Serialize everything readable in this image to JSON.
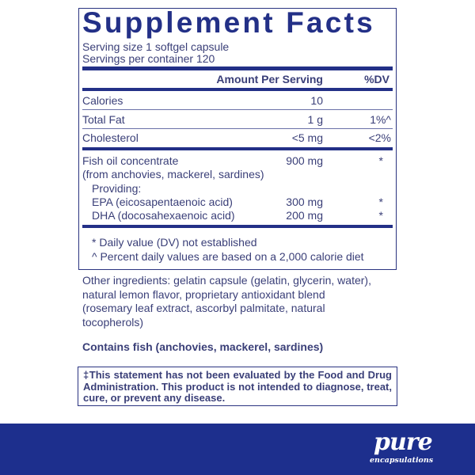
{
  "title": "Supplement Facts",
  "serving_size": "Serving size  1 softgel capsule",
  "servings_per_container": "Servings per container  120",
  "header": {
    "amount": "Amount Per Serving",
    "dv": "%DV"
  },
  "rows": [
    {
      "name": "Calories",
      "amount": "10",
      "dv": ""
    },
    {
      "name": "Total Fat",
      "amount": "1 g",
      "dv": "1%^"
    },
    {
      "name": "Cholesterol",
      "amount": "<5 mg",
      "dv": "<2%"
    },
    {
      "name": "Fish oil concentrate",
      "amount": "900 mg",
      "dv": "*"
    },
    {
      "name": "(from anchovies, mackerel, sardines)"
    },
    {
      "name": "Providing:"
    },
    {
      "name": "EPA (eicosapentaenoic acid)",
      "amount": "300 mg",
      "dv": "*"
    },
    {
      "name": "DHA (docosahexaenoic acid)",
      "amount": "200 mg",
      "dv": "*"
    }
  ],
  "footnotes": [
    "* Daily value (DV) not established",
    "^ Percent daily values are based on a 2,000 calorie diet"
  ],
  "other_ingredients": "Other ingredients: gelatin capsule (gelatin, glycerin, water), natural lemon flavor, proprietary antioxidant blend (rosemary leaf extract, ascorbyl palmitate, natural tocopherols)",
  "allergen": "Contains fish (anchovies, mackerel, sardines)",
  "disclaimer": "‡This statement has not been evaluated by the Food and Drug Administration. This product is not intended to diagnose, treat, cure, or prevent any disease.",
  "brand": {
    "name": "pure",
    "tagline": "encapsulations",
    "color": "#1d2f8d"
  }
}
